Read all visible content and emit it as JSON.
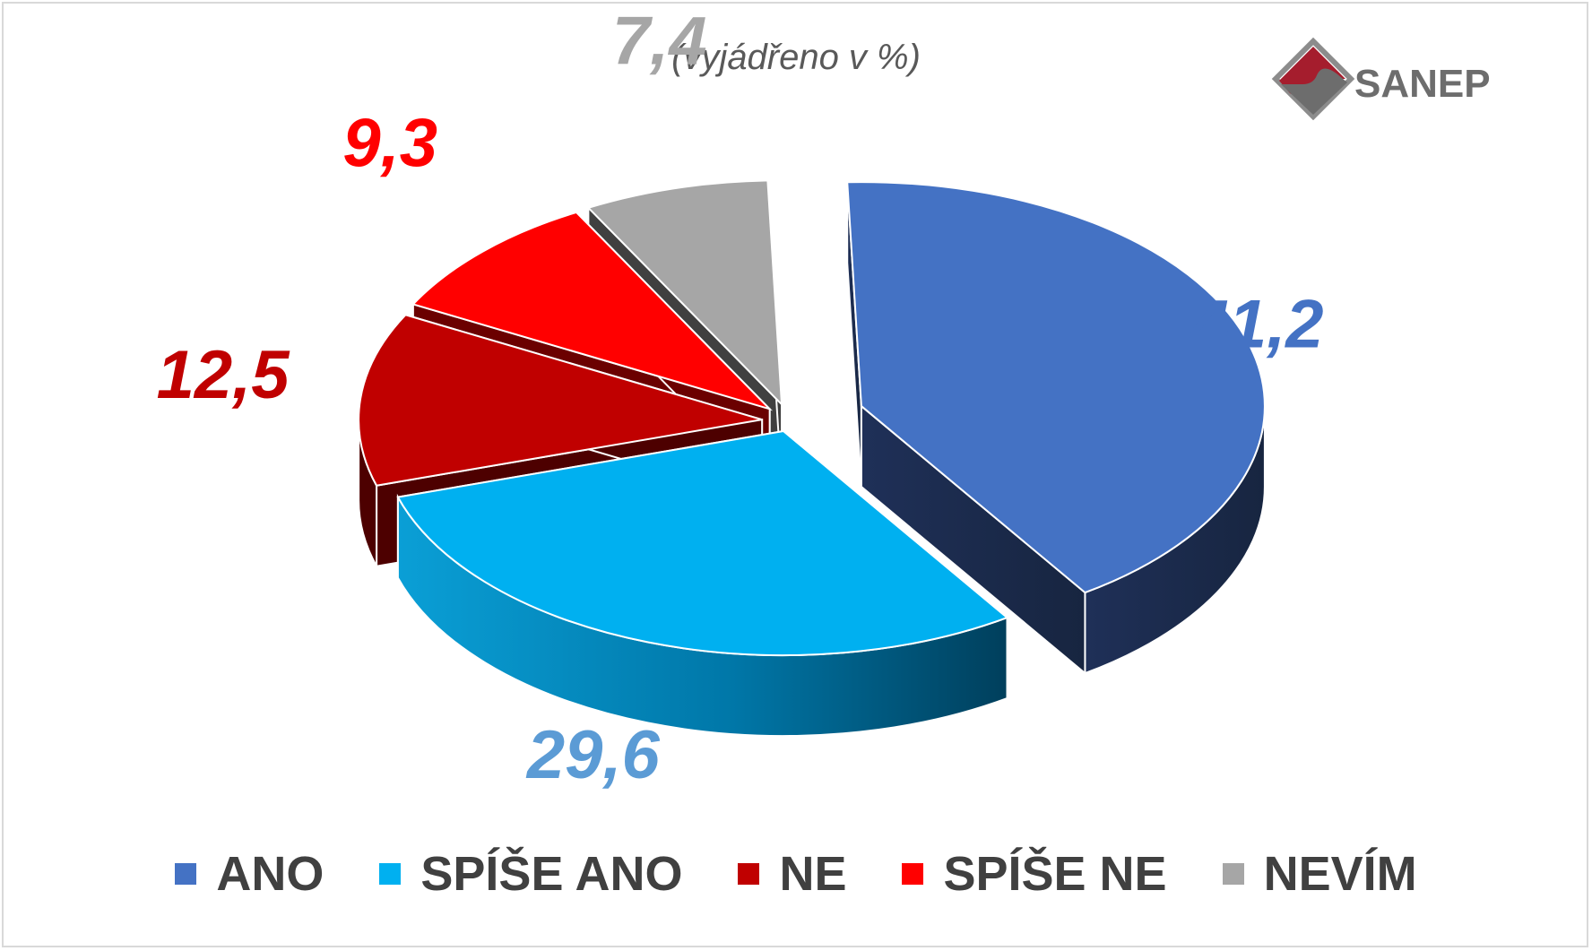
{
  "subtitle": "(vyjádřeno v %)",
  "logo": {
    "text": "SANEP"
  },
  "colors": {
    "ano": "#4472C4",
    "spise_ano": "#00B0F0",
    "ne": "#C00000",
    "spise_ne": "#FF0000",
    "nevim": "#A6A6A6"
  },
  "chart_data": {
    "type": "pie",
    "style": "3d-exploded",
    "unit": "%",
    "categories": [
      "ANO",
      "SPÍŠE ANO",
      "NE",
      "SPÍŠE NE",
      "NEVÍM"
    ],
    "values": [
      41.2,
      29.6,
      12.5,
      9.3,
      7.4
    ],
    "data_labels": [
      "41,2",
      "29,6",
      "12,5",
      "9,3",
      "7,4"
    ],
    "legend_position": "bottom",
    "series_colors": [
      "#4472C4",
      "#00B0F0",
      "#C00000",
      "#FF0000",
      "#A6A6A6"
    ],
    "label_colors": [
      "#4472C4",
      "#5B9BD5",
      "#C00000",
      "#FF0000",
      "#A6A6A6"
    ]
  }
}
